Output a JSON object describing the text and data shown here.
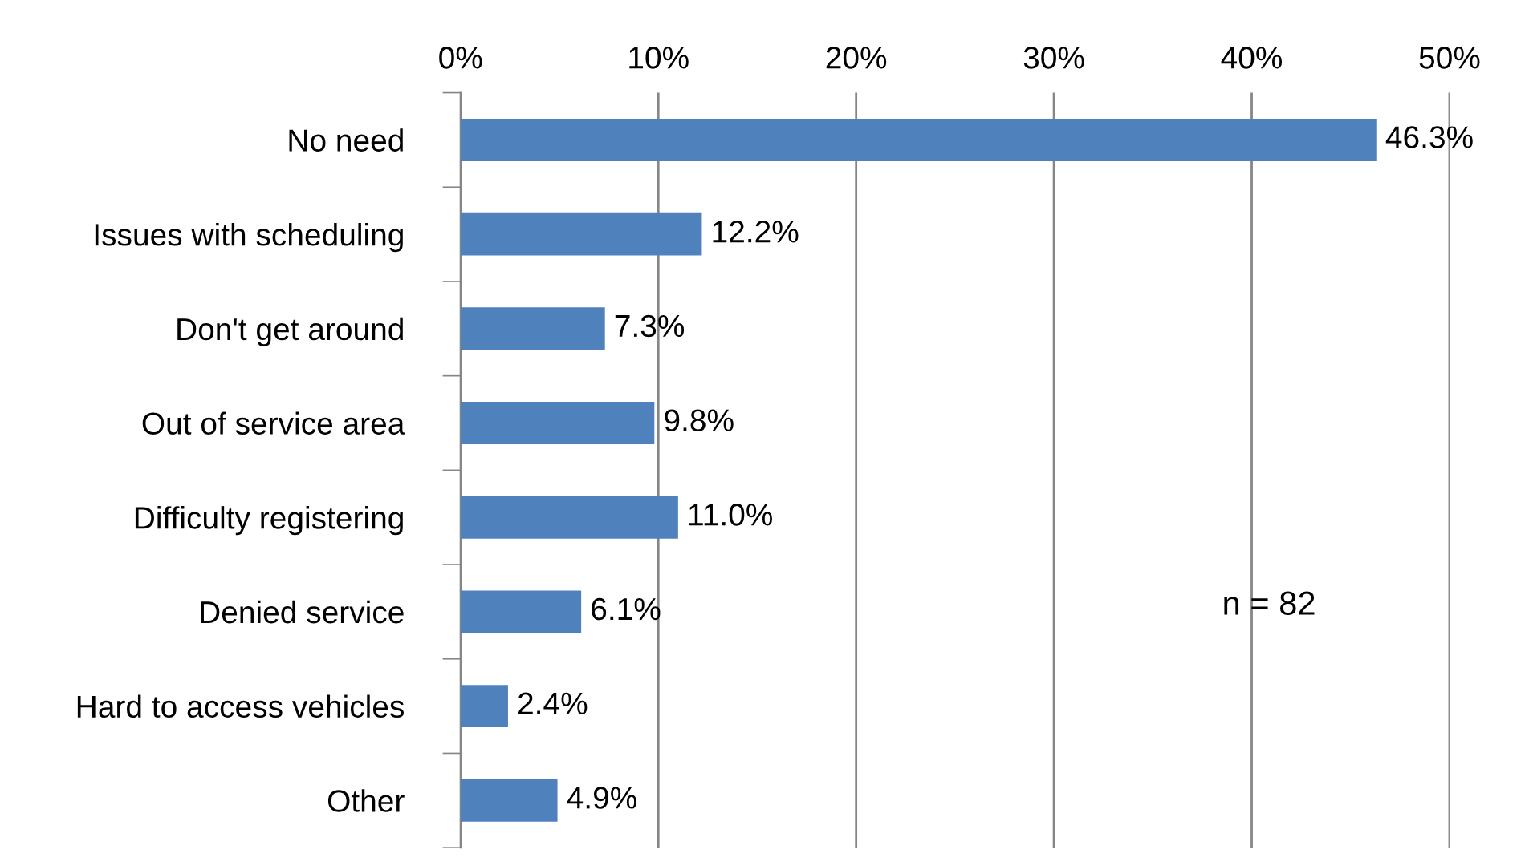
{
  "chart_data": {
    "type": "bar",
    "orientation": "horizontal",
    "categories": [
      "No need",
      "Issues with scheduling",
      "Don't get around",
      "Out of service area",
      "Difficulty registering",
      "Denied service",
      "Hard to access vehicles",
      "Other"
    ],
    "values": [
      46.3,
      12.2,
      7.3,
      9.8,
      11.0,
      6.1,
      2.4,
      4.9
    ],
    "value_labels": [
      "46.3%",
      "12.2%",
      "7.3%",
      "9.8%",
      "11.0%",
      "6.1%",
      "2.4%",
      "4.9%"
    ],
    "color": "#4f81bd",
    "xlim": [
      0,
      50
    ],
    "xticks": [
      {
        "value": 0,
        "label": "0%"
      },
      {
        "value": 10,
        "label": "10%"
      },
      {
        "value": 20,
        "label": "20%"
      },
      {
        "value": 30,
        "label": "30%"
      },
      {
        "value": 40,
        "label": "40%"
      },
      {
        "value": 50,
        "label": "50%"
      }
    ],
    "grid": "x",
    "annotations": [
      "n = 82"
    ]
  }
}
